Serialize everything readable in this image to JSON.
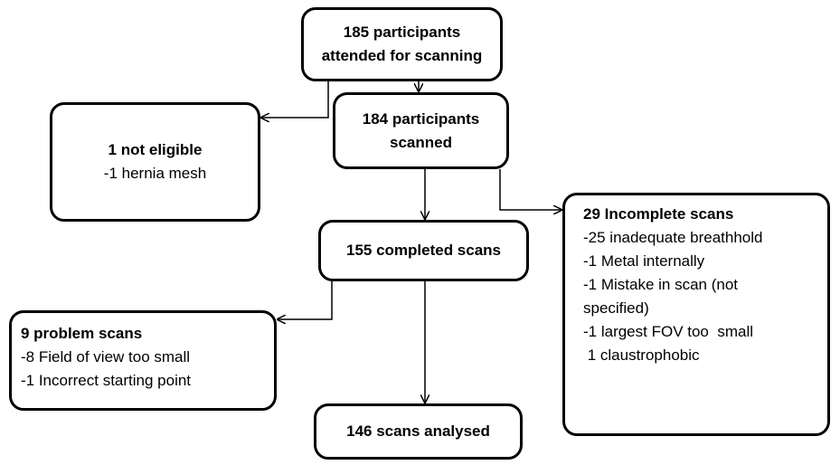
{
  "nodes": [
    {
      "title": [
        "185 participants",
        "attended for scanning"
      ],
      "lines": []
    },
    {
      "title": [
        "1 not eligible"
      ],
      "lines": [
        "-1 hernia mesh"
      ]
    },
    {
      "title": [
        "184 participants",
        "scanned"
      ],
      "lines": []
    },
    {
      "title": [
        "29 Incomplete scans"
      ],
      "lines": [
        "-25 inadequate breathhold",
        "-1 Metal internally",
        "-1 Mistake in scan (not",
        "specified)",
        "-1 largest FOV too  small",
        " 1 claustrophobic"
      ]
    },
    {
      "title": [
        "155 completed scans"
      ],
      "lines": []
    },
    {
      "title": [
        "9 problem scans"
      ],
      "lines": [
        "-8 Field of view too small",
        "-1 Incorrect starting point"
      ]
    },
    {
      "title": [
        "146 scans analysed"
      ],
      "lines": []
    }
  ]
}
